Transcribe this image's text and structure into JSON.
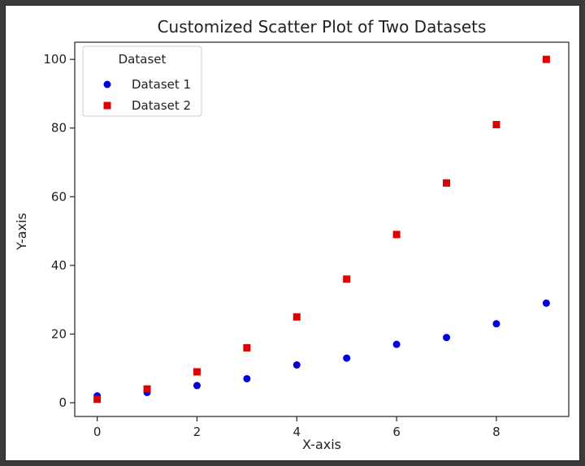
{
  "chart_data": {
    "type": "scatter",
    "title": "Customized Scatter Plot of Two Datasets",
    "xlabel": "X-axis",
    "ylabel": "Y-axis",
    "xlim": [
      -0.45,
      9.45
    ],
    "ylim": [
      -4,
      105
    ],
    "xticks": [
      0,
      2,
      4,
      6,
      8
    ],
    "yticks": [
      0,
      20,
      40,
      60,
      80,
      100
    ],
    "grid": false,
    "legend": {
      "title": "Dataset",
      "placement": "top-left"
    },
    "series": [
      {
        "name": "Dataset 1",
        "marker": "circle",
        "color": "#0000dd",
        "x": [
          0,
          1,
          2,
          3,
          4,
          5,
          6,
          7,
          8,
          9
        ],
        "y": [
          2,
          3,
          5,
          7,
          11,
          13,
          17,
          19,
          23,
          29
        ]
      },
      {
        "name": "Dataset 2",
        "marker": "square",
        "color": "#dd0000",
        "x": [
          0,
          1,
          2,
          3,
          4,
          5,
          6,
          7,
          8,
          9
        ],
        "y": [
          1,
          4,
          9,
          16,
          25,
          36,
          49,
          64,
          81,
          100
        ]
      }
    ]
  }
}
